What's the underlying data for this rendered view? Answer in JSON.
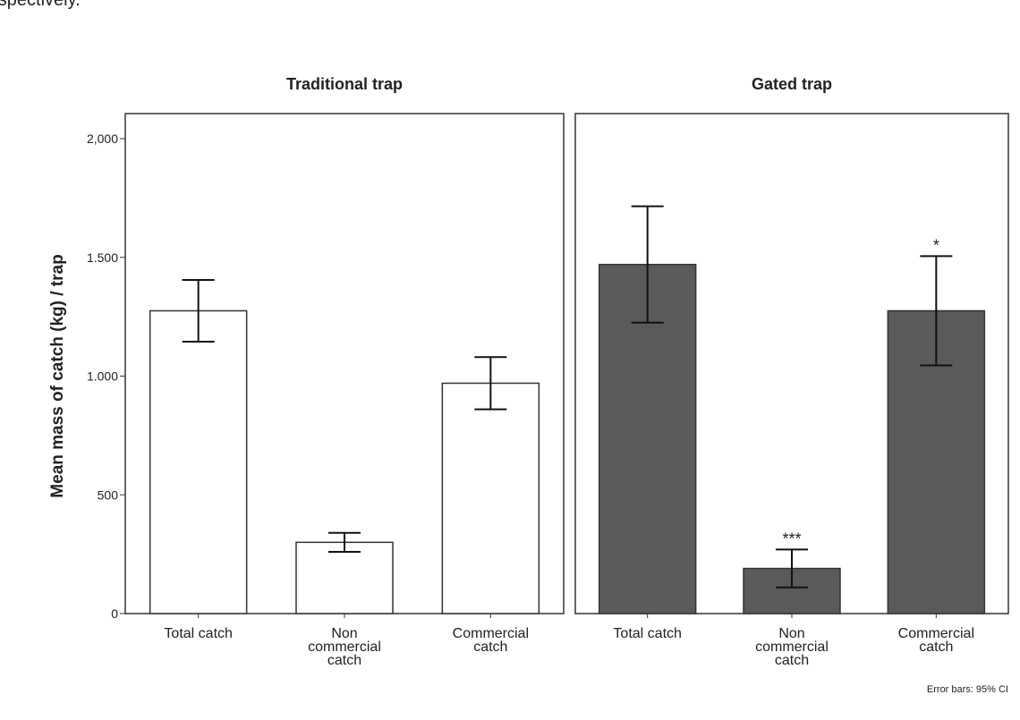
{
  "page_text": "respectively.",
  "chart_data": [
    {
      "type": "bar",
      "title": "Traditional trap",
      "ylabel": "Mean mass of catch (kg) / trap",
      "categories": [
        "Total catch",
        "Non\ncommercial\ncatch",
        "Commercial\ncatch"
      ],
      "values": [
        1275,
        300,
        970
      ],
      "errors": [
        130,
        40,
        110
      ],
      "color": "#ffffff",
      "ylim": [
        0,
        2000
      ],
      "yticks": [
        0,
        500,
        {
          "value": 1000,
          "label": "1.000"
        },
        {
          "value": 1500,
          "label": "1.500"
        },
        {
          "value": 2000,
          "label": "2,000"
        }
      ]
    },
    {
      "type": "bar",
      "title": "Gated trap",
      "note": "Error bars: 95% CI",
      "categories": [
        "Total catch",
        "Non\ncommercial\ncatch",
        "Commercial\ncatch"
      ],
      "values": [
        1470,
        190,
        1275
      ],
      "errors": [
        245,
        80,
        230
      ],
      "value_annotations": [
        null,
        "***",
        "*"
      ],
      "color": "#5a5a5a",
      "ylim": [
        0,
        2000
      ]
    }
  ]
}
